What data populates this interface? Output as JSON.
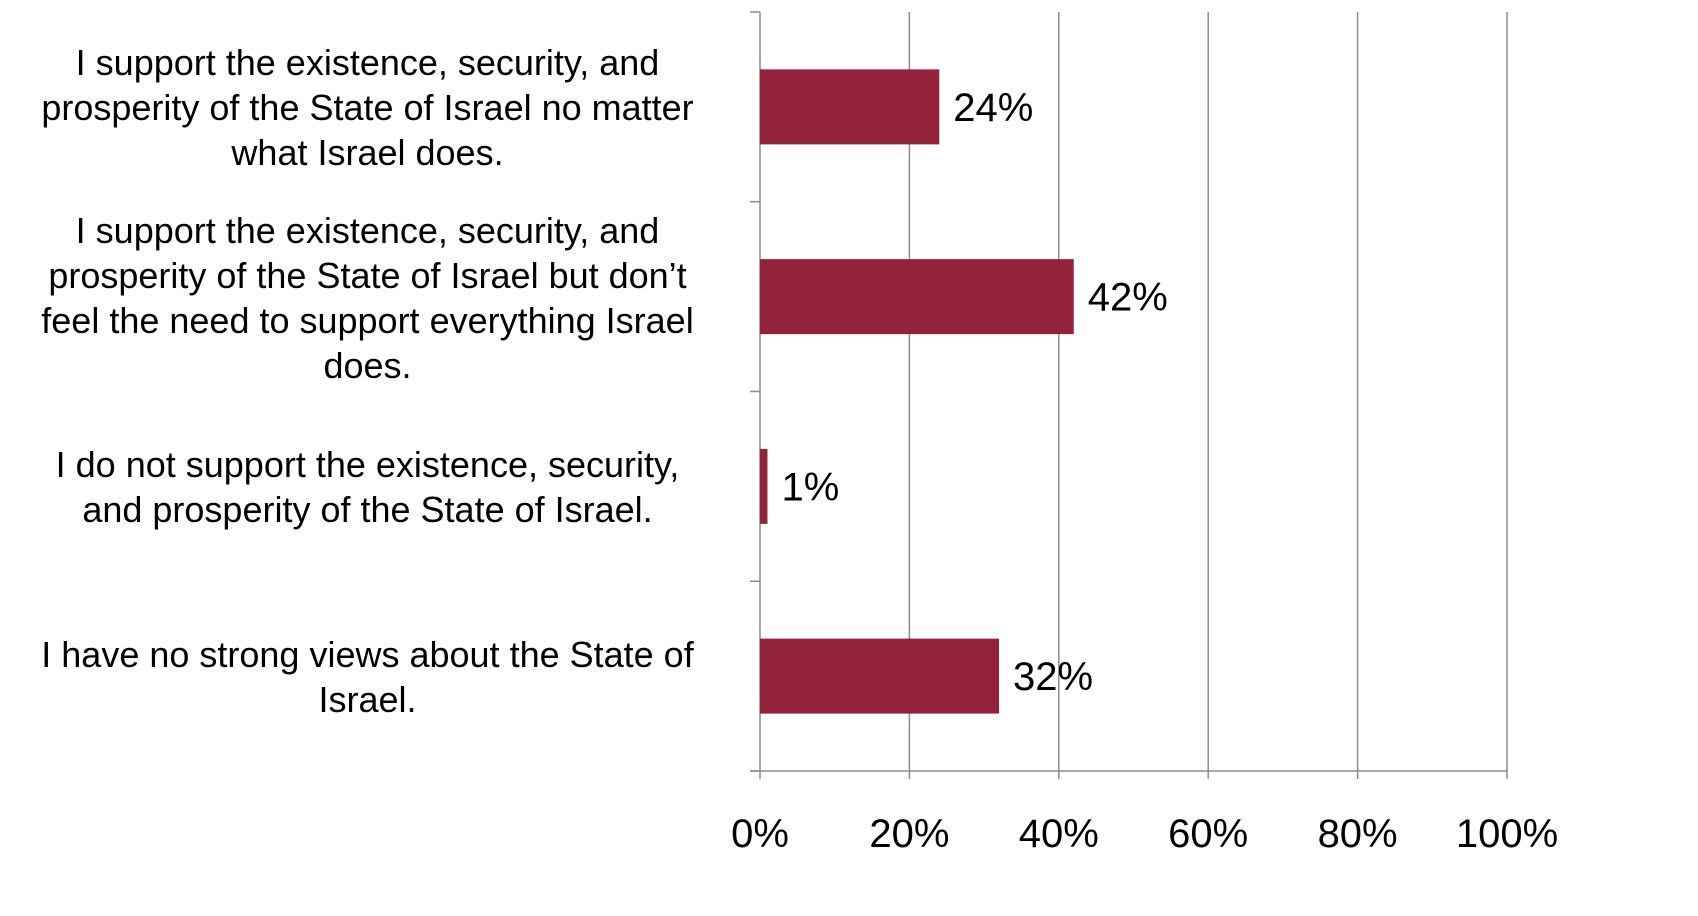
{
  "chart_data": {
    "type": "bar",
    "orientation": "horizontal",
    "categories": [
      "I support the existence, security, and prosperity of the State of Israel no matter what Israel does.",
      "I support the existence, security, and prosperity of the State of Israel but don’t feel the need to support everything Israel does.",
      "I do not support the existence, security, and prosperity of the State of Israel.",
      "I have no strong views about the State of Israel."
    ],
    "category_lines": [
      [
        "I support the existence, security, and",
        "prosperity of the State of Israel no matter",
        "what Israel does."
      ],
      [
        "I support the existence, security, and",
        "prosperity of the State of Israel but don’t",
        "feel the need to support everything Israel",
        "does."
      ],
      [
        "I do not support the existence, security,",
        "and prosperity of the State of Israel."
      ],
      [
        "I have no strong views about the State of",
        "Israel."
      ]
    ],
    "values": [
      24,
      42,
      1,
      32
    ],
    "data_labels": [
      "24%",
      "42%",
      "1%",
      "32%"
    ],
    "xlim": [
      0,
      100
    ],
    "xticks": [
      0,
      20,
      40,
      60,
      80,
      100
    ],
    "xtick_labels": [
      "0%",
      "20%",
      "40%",
      "60%",
      "80%",
      "100%"
    ],
    "grid": true,
    "legend": "none",
    "bar_color": "#92233A",
    "grid_color": "#8C8C8C"
  }
}
